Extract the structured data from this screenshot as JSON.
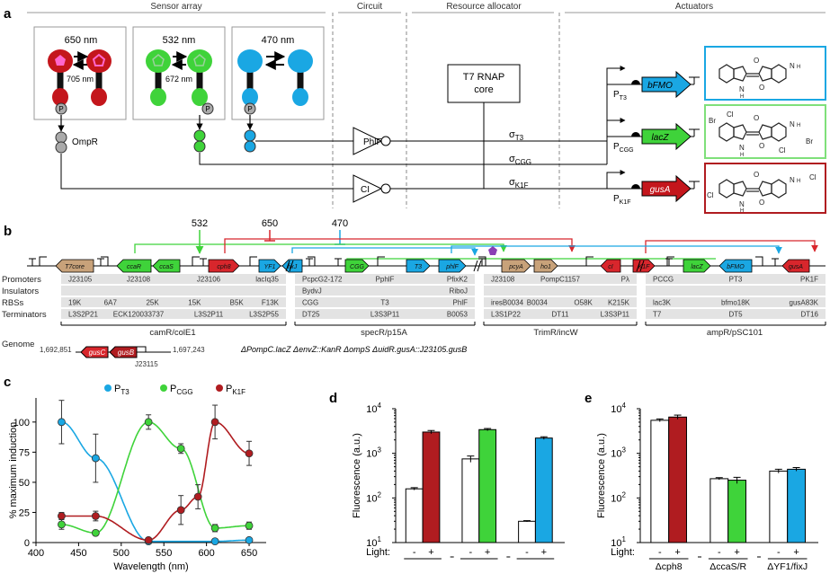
{
  "panels": {
    "a": "a",
    "b": "b",
    "c": "c",
    "d": "d",
    "e": "e"
  },
  "panel_a": {
    "headers": [
      "Sensor array",
      "Circuit",
      "Resource allocator",
      "Actuators"
    ],
    "sensors": [
      {
        "wavelength": "650 nm",
        "dark": "705 nm",
        "color": "#c4161c"
      },
      {
        "wavelength": "532 nm",
        "dark": "672 nm",
        "color": "#3fd33a"
      },
      {
        "wavelength": "470 nm",
        "dark": "",
        "color": "#1aa7e3"
      }
    ],
    "phospho": "P",
    "ompr": "OmpR",
    "rnap": [
      "T7 RNAP",
      "core"
    ],
    "gates": [
      "PhlF",
      "CI"
    ],
    "sigmas": [
      {
        "s": "σ",
        "sub": "T3"
      },
      {
        "s": "σ",
        "sub": "CGG"
      },
      {
        "s": "σ",
        "sub": "K1F"
      }
    ],
    "promoters": [
      {
        "p": "P",
        "sub": "T3"
      },
      {
        "p": "P",
        "sub": "CGG"
      },
      {
        "p": "P",
        "sub": "K1F"
      }
    ],
    "genes": [
      "bFMO",
      "lacZ",
      "gusA"
    ],
    "pigment_atoms": {
      "nh": "N",
      "h": "H",
      "o": "O",
      "cl": "Cl",
      "br": "Br"
    }
  },
  "panel_b": {
    "inputs": [
      "532",
      "650",
      "470"
    ],
    "genes": [
      "T7core",
      "ccaR",
      "ccaS",
      "cph8",
      "YF1",
      "fixJ",
      "CGG",
      "T3",
      "phlF",
      "pcyA",
      "ho1",
      "cI",
      "K1F",
      "lacZ",
      "bFMO",
      "gusA"
    ],
    "row_labels": [
      "Promoters",
      "Insulators",
      "RBSs",
      "Terminators"
    ],
    "plasmid_names": [
      "camR/colE1",
      "specR/p15A",
      "TrimR/incW",
      "ampR/pSC101"
    ],
    "promoters": [
      [
        "J23105",
        "J23108",
        "J23106",
        "lacIq35"
      ],
      [
        "PcpcG2-172",
        "PphlF",
        "PfixK2"
      ],
      [
        "J23108",
        "PompC1157",
        "Pλ"
      ],
      [
        "PCCG",
        "PT3",
        "PK1F"
      ]
    ],
    "insulators": [
      [],
      [
        "BydvJ",
        "RiboJ"
      ],
      [],
      []
    ],
    "rbs": [
      [
        "19K",
        "6A7",
        "25K",
        "15K",
        "B5K",
        "F13K"
      ],
      [
        "CGG",
        "T3",
        "PhlF"
      ],
      [
        "iresB0034",
        "B0034",
        "O58K",
        "K215K"
      ],
      [
        "lac3K",
        "bfmo18K",
        "gusA83K"
      ]
    ],
    "terminators": [
      [
        "L3S2P21",
        "ECK120033737",
        "L3S2P11",
        "L3S2P55"
      ],
      [
        "DT25",
        "L3S3P11",
        "B0053"
      ],
      [
        "L3S1P22",
        "DT11",
        "L3S3P11"
      ],
      [
        "T7",
        "DT5",
        "DT16"
      ]
    ],
    "genome": {
      "label": "Genome",
      "start": "1,692,851",
      "end": "1,697,243",
      "genes": [
        "gusC",
        "gusB"
      ],
      "promoter": "J23115",
      "deletions": "ΔPompC.lacZ ΔenvZ::KanR ΔompS ΔuidR.gusA::J23105.gusB"
    }
  },
  "chart_data": [
    {
      "panel": "c",
      "type": "line",
      "xlabel": "Wavelength (nm)",
      "ylabel": "% maximum induction",
      "xlim": [
        400,
        670
      ],
      "ylim": [
        0,
        120
      ],
      "xticks": [
        400,
        450,
        500,
        550,
        600,
        650
      ],
      "yticks": [
        0,
        25,
        50,
        75,
        100
      ],
      "legend_position": "top",
      "series": [
        {
          "name": "T3",
          "label_prefix": "P",
          "color": "#1aa7e3",
          "x": [
            430,
            470,
            532,
            610,
            650
          ],
          "y": [
            100,
            70,
            1,
            1,
            2
          ],
          "err": [
            18,
            20,
            2,
            1,
            1
          ]
        },
        {
          "name": "CGG",
          "label_prefix": "P",
          "color": "#3fd33a",
          "x": [
            430,
            470,
            532,
            570,
            610,
            650
          ],
          "y": [
            15,
            8,
            100,
            78,
            12,
            14
          ],
          "err": [
            4,
            2,
            6,
            4,
            3,
            3
          ]
        },
        {
          "name": "K1F",
          "label_prefix": "P",
          "color": "#b01c20",
          "x": [
            430,
            470,
            532,
            570,
            590,
            610,
            650
          ],
          "y": [
            22,
            22,
            2,
            27,
            38,
            100,
            74
          ],
          "err": [
            3,
            4,
            2,
            12,
            10,
            14,
            10
          ]
        }
      ]
    },
    {
      "panel": "d",
      "type": "bar",
      "ylabel": "Fluorescence (a.u.)",
      "yscale": "log",
      "ylim": [
        10,
        10000
      ],
      "yticks": [
        {
          "v": 10,
          "base": "10",
          "exp": "1"
        },
        {
          "v": 100,
          "base": "10",
          "exp": "2"
        },
        {
          "v": 1000,
          "base": "10",
          "exp": "3"
        },
        {
          "v": 10000,
          "base": "10",
          "exp": "4"
        }
      ],
      "xlabel": "Light:",
      "groups": [
        {
          "labels": [
            "-",
            "+"
          ],
          "values": [
            160,
            3000
          ],
          "err": [
            10,
            250
          ],
          "colors": [
            "#ffffff",
            "#b01c20"
          ]
        },
        {
          "labels": [
            "-",
            "+"
          ],
          "values": [
            750,
            3400
          ],
          "err": [
            120,
            200
          ],
          "colors": [
            "#ffffff",
            "#3fd33a"
          ]
        },
        {
          "labels": [
            "-",
            "+"
          ],
          "values": [
            30,
            2200
          ],
          "err": [
            1,
            150
          ],
          "colors": [
            "#ffffff",
            "#1aa7e3"
          ]
        }
      ]
    },
    {
      "panel": "e",
      "type": "bar",
      "ylabel": "Fluorescence (a.u.)",
      "yscale": "log",
      "ylim": [
        10,
        10000
      ],
      "yticks": [
        {
          "v": 10,
          "base": "10",
          "exp": "1"
        },
        {
          "v": 100,
          "base": "10",
          "exp": "2"
        },
        {
          "v": 1000,
          "base": "10",
          "exp": "3"
        },
        {
          "v": 10000,
          "base": "10",
          "exp": "4"
        }
      ],
      "xlabel": "Light:",
      "groups": [
        {
          "name": "Δcph8",
          "labels": [
            "-",
            "+"
          ],
          "values": [
            5500,
            6500
          ],
          "err": [
            400,
            700
          ],
          "colors": [
            "#ffffff",
            "#b01c20"
          ]
        },
        {
          "name": "ΔccaS/R",
          "labels": [
            "-",
            "+"
          ],
          "values": [
            270,
            250
          ],
          "err": [
            15,
            40
          ],
          "colors": [
            "#ffffff",
            "#3fd33a"
          ]
        },
        {
          "name": "ΔYF1/fixJ",
          "labels": [
            "-",
            "+"
          ],
          "values": [
            400,
            440
          ],
          "err": [
            40,
            40
          ],
          "colors": [
            "#ffffff",
            "#1aa7e3"
          ]
        }
      ]
    }
  ]
}
